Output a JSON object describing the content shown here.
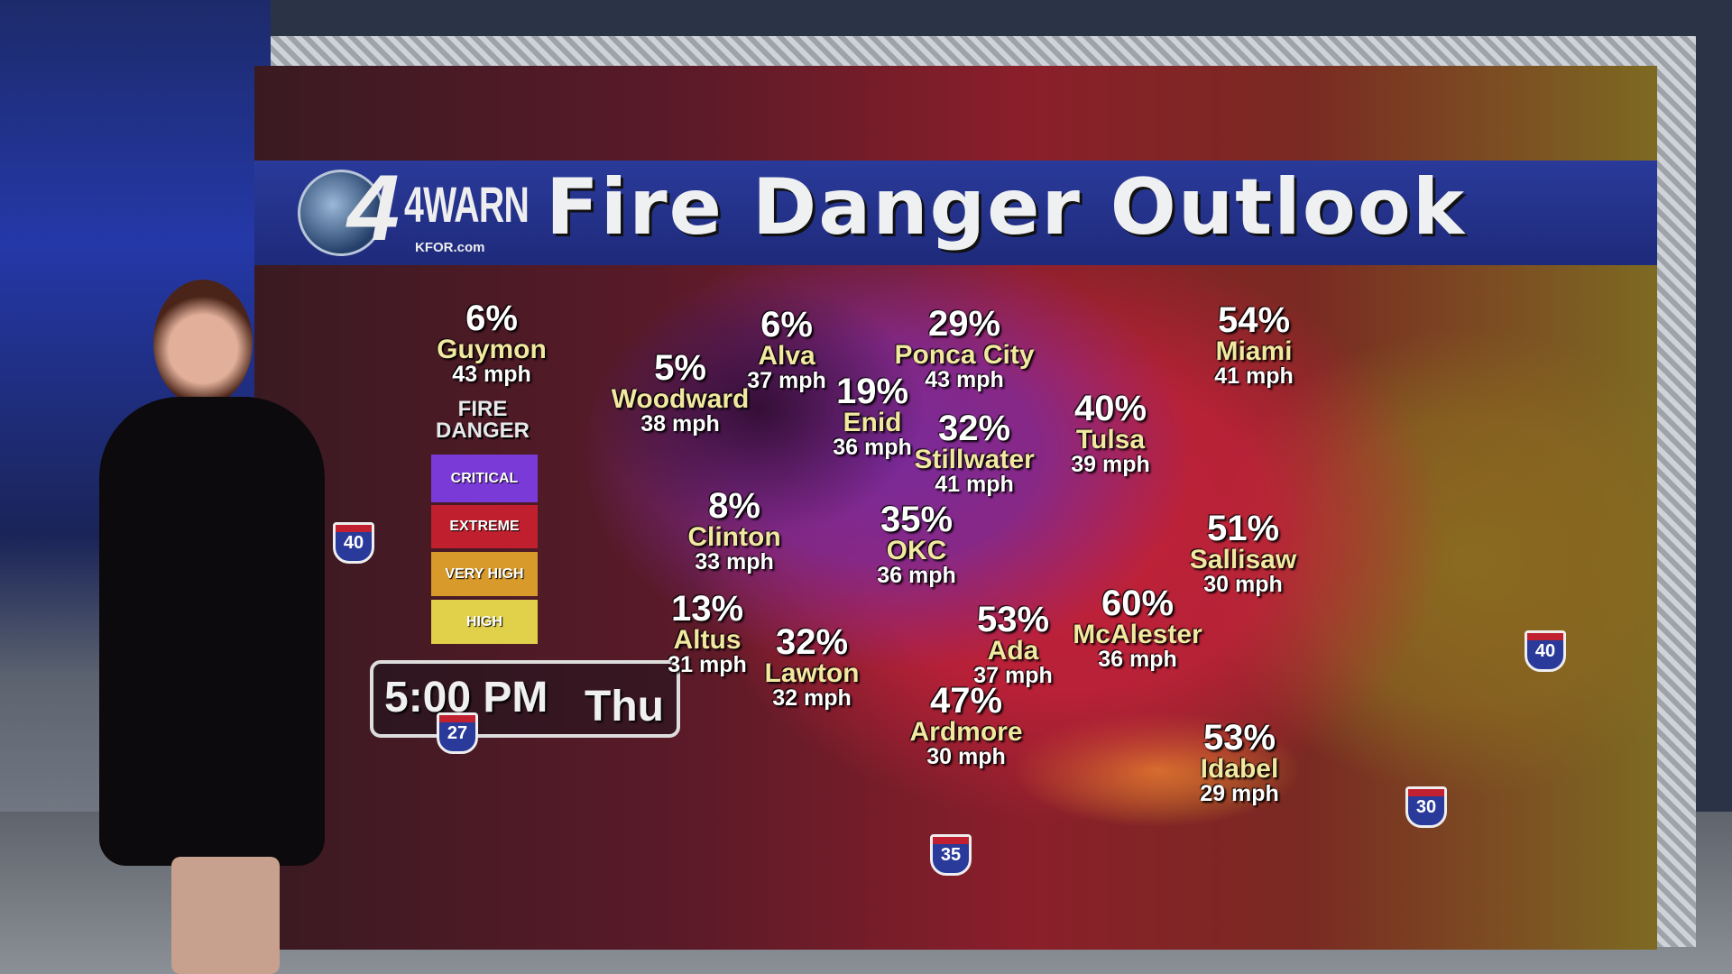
{
  "header": {
    "logo_text": "4WARN",
    "logo_sub": "KFOR.com",
    "title": "Fire Danger Outlook"
  },
  "legend": {
    "title": "FIRE DANGER",
    "items": [
      {
        "label": "CRITICAL",
        "color": "#7a3ad8"
      },
      {
        "label": "EXTREME",
        "color": "#c0202e"
      },
      {
        "label": "VERY HIGH",
        "color": "#d89a2a"
      },
      {
        "label": "HIGH",
        "color": "#e0d04a"
      }
    ]
  },
  "timestamp": {
    "time": "5:00 PM",
    "day": "Thu"
  },
  "cities": [
    {
      "pct": "6%",
      "name": "Guymon",
      "wind": "43 mph"
    },
    {
      "pct": "6%",
      "name": "Alva",
      "wind": "37 mph"
    },
    {
      "pct": "5%",
      "name": "Woodward",
      "wind": "38 mph"
    },
    {
      "pct": "29%",
      "name": "Ponca City",
      "wind": "43 mph"
    },
    {
      "pct": "19%",
      "name": "Enid",
      "wind": "36 mph"
    },
    {
      "pct": "54%",
      "name": "Miami",
      "wind": "41 mph"
    },
    {
      "pct": "32%",
      "name": "Stillwater",
      "wind": "41 mph"
    },
    {
      "pct": "40%",
      "name": "Tulsa",
      "wind": "39 mph"
    },
    {
      "pct": "8%",
      "name": "Clinton",
      "wind": "33 mph"
    },
    {
      "pct": "35%",
      "name": "OKC",
      "wind": "36 mph"
    },
    {
      "pct": "51%",
      "name": "Sallisaw",
      "wind": "30 mph"
    },
    {
      "pct": "13%",
      "name": "Altus",
      "wind": "31 mph"
    },
    {
      "pct": "32%",
      "name": "Lawton",
      "wind": "32 mph"
    },
    {
      "pct": "53%",
      "name": "Ada",
      "wind": "37 mph"
    },
    {
      "pct": "60%",
      "name": "McAlester",
      "wind": "36 mph"
    },
    {
      "pct": "47%",
      "name": "Ardmore",
      "wind": "30 mph"
    },
    {
      "pct": "53%",
      "name": "Idabel",
      "wind": "29 mph"
    }
  ],
  "interstates": [
    "40",
    "27",
    "35",
    "40",
    "30"
  ]
}
